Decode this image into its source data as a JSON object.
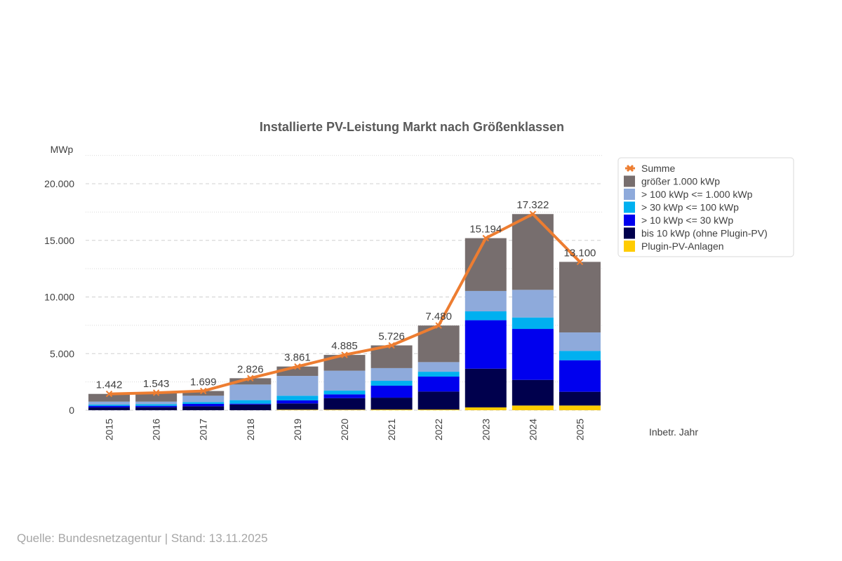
{
  "chart_data": {
    "type": "bar",
    "stacked": true,
    "title": "Installierte PV-Leistung Markt nach Größenklassen",
    "ylabel": "MWp",
    "xlabel": "Inbetr. Jahr",
    "ylim": [
      0,
      20000
    ],
    "yticks": [
      0,
      5000,
      10000,
      15000,
      20000
    ],
    "ytick_labels": [
      "0",
      "5.000",
      "10.000",
      "15.000",
      "20.000"
    ],
    "grid": true,
    "legend_position": "right",
    "categories": [
      "2015",
      "2016",
      "2017",
      "2018",
      "2019",
      "2020",
      "2021",
      "2022",
      "2023",
      "2024",
      "2025"
    ],
    "series": [
      {
        "name": "Plugin-PV-Anlagen",
        "color": "#ffcc00",
        "values": [
          0,
          0,
          0,
          0,
          50,
          50,
          60,
          60,
          250,
          415,
          415
        ]
      },
      {
        "name": "bis 10 kWp (ohne Plugin-PV)",
        "color": "#00004d",
        "values": [
          250,
          270,
          350,
          510,
          550,
          1020,
          1050,
          1590,
          3420,
          2265,
          1215
        ]
      },
      {
        "name": "> 10 kWp <= 30 kWp",
        "color": "#0000ee",
        "values": [
          140,
          120,
          210,
          70,
          270,
          330,
          1060,
          1320,
          4280,
          4500,
          2785
        ]
      },
      {
        "name": "> 30 kWp <= 100 kWp",
        "color": "#00b0f0",
        "values": [
          110,
          150,
          160,
          310,
          410,
          330,
          430,
          430,
          780,
          1010,
          825
        ]
      },
      {
        "name": "> 100 kWp <= 1.000 kWp",
        "color": "#8eaadb",
        "values": [
          260,
          220,
          560,
          1380,
          1750,
          1760,
          1120,
          850,
          1800,
          2440,
          1630
        ]
      },
      {
        "name": "größer 1.000 kWp",
        "color": "#776e6e",
        "values": [
          682,
          783,
          419,
          556,
          831,
          1395,
          2006,
          3230,
          4664,
          6692,
          6230
        ]
      }
    ],
    "line": {
      "name": "Summe",
      "color": "#ed7d31",
      "values": [
        1442,
        1543,
        1699,
        2826,
        3861,
        4885,
        5726,
        7480,
        15194,
        17322,
        13100
      ],
      "labels": [
        "1.442",
        "1.543",
        "1.699",
        "2.826",
        "3.861",
        "4.885",
        "5.726",
        "7.480",
        "15.194",
        "17.322",
        "13.100"
      ]
    },
    "legend_order": [
      "Summe",
      "größer 1.000 kWp",
      "> 100 kWp <= 1.000 kWp",
      "> 30 kWp <= 100 kWp",
      "> 10 kWp <= 30 kWp",
      "bis 10 kWp (ohne Plugin-PV)",
      "Plugin-PV-Anlagen"
    ]
  },
  "source": "Quelle: Bundesnetzagentur | Stand: 13.11.2025"
}
